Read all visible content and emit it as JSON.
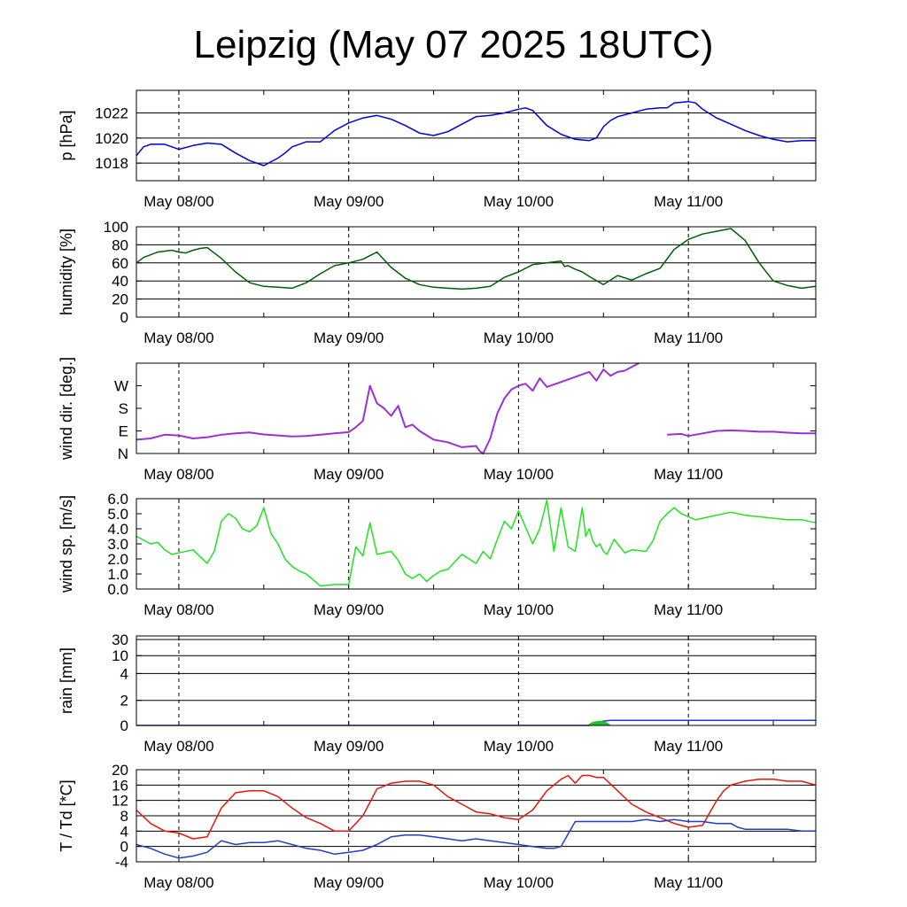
{
  "title": "Leipzig (May 07 2025 18UTC)",
  "colors": {
    "pressure": "#0000dd",
    "humidity": "#005f00",
    "wind_dir": "#9b30d9",
    "wind_speed": "#22e222",
    "rain_total": "#1e3fc8",
    "rain_rate": "#22c22c",
    "temperature": "#e8160c",
    "dewpoint": "#1e3fc8"
  },
  "chart_data": [
    {
      "type": "line",
      "ylabel": "p [hPa]",
      "x_tick_labels": [
        "May 08/00",
        "May 09/00",
        "May 10/00",
        "May 11/00"
      ],
      "x_ticks_hours": [
        6,
        30,
        54,
        78
      ],
      "x_range_hours": [
        0,
        96
      ],
      "ylim": [
        1016.6,
        1023.8
      ],
      "y_ticks": [
        1018,
        1020,
        1022
      ],
      "y_tick_labels": [
        "1018",
        "1020",
        "1022"
      ],
      "grid": true,
      "series": [
        {
          "key": "pressure",
          "x": [
            0,
            1,
            2,
            4,
            6,
            8,
            10,
            12,
            14,
            16,
            18,
            20,
            21,
            22,
            24,
            26,
            28,
            30,
            32,
            34,
            36,
            38,
            40,
            42,
            44,
            46,
            48,
            50,
            52,
            54,
            55,
            56,
            57,
            58,
            60,
            62,
            64,
            65,
            66,
            67,
            68,
            70,
            72,
            74,
            75,
            76,
            78,
            79,
            80,
            82,
            84,
            86,
            88,
            90,
            92,
            94,
            96
          ],
          "values": [
            1018.6,
            1019.3,
            1019.5,
            1019.5,
            1019.1,
            1019.4,
            1019.6,
            1019.5,
            1018.8,
            1018.2,
            1017.8,
            1018.4,
            1018.8,
            1019.3,
            1019.7,
            1019.7,
            1020.6,
            1021.2,
            1021.6,
            1021.8,
            1021.5,
            1021.0,
            1020.4,
            1020.2,
            1020.5,
            1021.1,
            1021.7,
            1021.8,
            1022.0,
            1022.3,
            1022.4,
            1022.2,
            1021.6,
            1021.0,
            1020.3,
            1019.9,
            1019.8,
            1020.0,
            1020.9,
            1021.4,
            1021.7,
            1022.0,
            1022.3,
            1022.4,
            1022.4,
            1022.8,
            1022.9,
            1022.8,
            1022.3,
            1021.6,
            1021.1,
            1020.6,
            1020.2,
            1019.9,
            1019.7,
            1019.8,
            1019.8
          ]
        }
      ]
    },
    {
      "type": "line",
      "ylabel": "humidity [%]",
      "x_tick_labels": [
        "May 08/00",
        "May 09/00",
        "May 10/00",
        "May 11/00"
      ],
      "x_ticks_hours": [
        6,
        30,
        54,
        78
      ],
      "x_range_hours": [
        0,
        96
      ],
      "ylim": [
        0,
        100
      ],
      "y_ticks": [
        0,
        20,
        40,
        60,
        80,
        100
      ],
      "y_tick_labels": [
        "0",
        "20",
        "40",
        "60",
        "80",
        "100"
      ],
      "grid": true,
      "series": [
        {
          "key": "humidity",
          "x": [
            0,
            1,
            3,
            5,
            6,
            7,
            8,
            9,
            10,
            12,
            14,
            16,
            18,
            20,
            22,
            24,
            26,
            28,
            30,
            32,
            33,
            34,
            36,
            38,
            40,
            42,
            44,
            46,
            48,
            50,
            52,
            54,
            56,
            58,
            60,
            60.5,
            61,
            62,
            63,
            64,
            66,
            68,
            70,
            72,
            74,
            76,
            78,
            80,
            82,
            84,
            86,
            88,
            90,
            92,
            94,
            96
          ],
          "values": [
            60,
            66,
            72,
            74,
            72,
            71,
            74,
            76,
            77,
            65,
            50,
            38,
            34,
            33,
            32,
            38,
            48,
            57,
            60,
            64,
            68,
            72,
            55,
            43,
            36,
            33,
            32,
            31,
            32,
            34,
            44,
            50,
            58,
            60,
            62,
            56,
            57,
            53,
            50,
            45,
            36,
            46,
            41,
            48,
            54,
            75,
            86,
            92,
            95,
            98,
            85,
            60,
            40,
            35,
            32,
            34
          ]
        }
      ]
    },
    {
      "type": "line",
      "ylabel": "wind dir. [deg.]",
      "x_tick_labels": [
        "May 08/00",
        "May 09/00",
        "May 10/00",
        "May 11/00"
      ],
      "x_ticks_hours": [
        6,
        30,
        54,
        78
      ],
      "x_range_hours": [
        0,
        96
      ],
      "ylim": [
        0,
        360
      ],
      "y_ticks": [
        0,
        90,
        180,
        270
      ],
      "y_tick_labels": [
        "N",
        "E",
        "S",
        "W"
      ],
      "grid": false,
      "series": [
        {
          "key": "wind_dir",
          "x": [
            0,
            2,
            4,
            6,
            8,
            10,
            12,
            14,
            16,
            18,
            20,
            22,
            24,
            26,
            28,
            30,
            31,
            32,
            33,
            34,
            35,
            36,
            37,
            38,
            39,
            40,
            42,
            44,
            46,
            48,
            48.5,
            49,
            50,
            51,
            52,
            53,
            54,
            55,
            56,
            57,
            58,
            59,
            60,
            62,
            64,
            65,
            66,
            67,
            68,
            69,
            70,
            71,
            null,
            75,
            77,
            78,
            80,
            82,
            84,
            86,
            88,
            90,
            92,
            94,
            96
          ],
          "values": [
            55,
            60,
            75,
            72,
            60,
            65,
            75,
            80,
            84,
            76,
            72,
            68,
            70,
            75,
            80,
            85,
            105,
            130,
            270,
            200,
            180,
            150,
            190,
            105,
            115,
            90,
            55,
            45,
            25,
            30,
            10,
            0,
            60,
            160,
            220,
            255,
            270,
            278,
            250,
            300,
            265,
            275,
            285,
            305,
            325,
            290,
            335,
            310,
            325,
            330,
            345,
            360,
            null,
            75,
            78,
            70,
            80,
            90,
            92,
            90,
            87,
            87,
            83,
            80,
            80
          ]
        }
      ]
    },
    {
      "type": "line",
      "ylabel": "wind sp. [m/s]",
      "x_tick_labels": [
        "May 08/00",
        "May 09/00",
        "May 10/00",
        "May 11/00"
      ],
      "x_ticks_hours": [
        6,
        30,
        54,
        78
      ],
      "x_range_hours": [
        0,
        96
      ],
      "ylim": [
        0,
        6
      ],
      "y_ticks": [
        0,
        1,
        2,
        3,
        4,
        5,
        6
      ],
      "y_tick_labels": [
        "0.0",
        "1.0",
        "2.0",
        "3.0",
        "4.0",
        "5.0",
        "6.0"
      ],
      "grid": false,
      "series": [
        {
          "key": "wind_speed",
          "x": [
            0,
            2,
            3,
            4,
            5,
            6,
            8,
            10,
            11,
            12,
            13,
            14,
            15,
            16,
            17,
            18,
            19,
            20,
            21,
            22,
            23,
            24,
            26,
            28,
            30,
            31,
            32,
            33,
            34,
            36,
            37,
            38,
            39,
            40,
            41,
            42,
            43,
            44,
            45,
            46,
            48,
            49,
            50,
            51,
            52,
            53,
            54,
            56,
            57,
            58,
            59,
            60,
            61,
            62,
            63,
            63.5,
            64,
            64.5,
            65,
            65.5,
            66,
            66.5,
            67,
            67.5,
            68,
            69,
            70,
            72,
            73,
            74,
            75,
            76,
            77,
            78,
            79,
            80,
            82,
            84,
            86,
            88,
            90,
            92,
            94,
            96
          ],
          "values": [
            3.5,
            3.0,
            3.1,
            2.6,
            2.3,
            2.4,
            2.6,
            1.7,
            2.5,
            4.5,
            5.0,
            4.7,
            4.0,
            3.8,
            4.2,
            5.4,
            3.7,
            3.0,
            2.0,
            1.5,
            1.2,
            1.0,
            0.2,
            0.3,
            0.3,
            2.8,
            2.2,
            4.4,
            2.3,
            2.5,
            1.9,
            1.0,
            0.7,
            1.0,
            0.5,
            0.9,
            1.2,
            1.3,
            1.8,
            2.3,
            1.7,
            2.5,
            2.0,
            3.3,
            4.5,
            4.0,
            5.2,
            3.0,
            4.0,
            5.9,
            2.5,
            5.4,
            2.8,
            2.5,
            5.4,
            3.5,
            4.0,
            3.2,
            2.8,
            3.0,
            2.5,
            2.3,
            2.8,
            3.3,
            3.0,
            2.4,
            2.6,
            2.5,
            3.2,
            4.5,
            5.0,
            5.4,
            5.0,
            4.8,
            4.6,
            4.7,
            4.9,
            5.1,
            4.9,
            4.8,
            4.7,
            4.6,
            4.6,
            4.4
          ]
        }
      ]
    },
    {
      "type": "area",
      "ylabel": "rain [mm]",
      "x_tick_labels": [
        "May 08/00",
        "May 09/00",
        "May 10/00",
        "May 11/00"
      ],
      "x_ticks_hours": [
        6,
        30,
        54,
        78
      ],
      "x_range_hours": [
        0,
        96
      ],
      "y_ticks": [
        0,
        2,
        4,
        10,
        30
      ],
      "y_tick_labels": [
        "0",
        "2",
        "4",
        "10",
        "30"
      ],
      "grid": true,
      "series": [
        {
          "key": "rain_total",
          "x": [
            0,
            64,
            65,
            66,
            67,
            96
          ],
          "values": [
            0,
            0,
            0.2,
            0.35,
            0.4,
            0.4
          ]
        },
        {
          "key": "rain_rate",
          "x": [
            64,
            64.5,
            65,
            65.5,
            66,
            66.5,
            67
          ],
          "values": [
            0.1,
            0.25,
            0.3,
            0.35,
            0.3,
            0.2,
            0.0
          ]
        }
      ]
    },
    {
      "type": "line",
      "ylabel": "T / Td [*C]",
      "x_tick_labels": [
        "May 08/00",
        "May 09/00",
        "May 10/00",
        "May 11/00"
      ],
      "x_ticks_hours": [
        6,
        30,
        54,
        78
      ],
      "x_range_hours": [
        0,
        96
      ],
      "ylim": [
        -4,
        20
      ],
      "y_ticks": [
        -4,
        0,
        4,
        8,
        12,
        16,
        20
      ],
      "y_tick_labels": [
        "-4",
        "0",
        "4",
        "8",
        "12",
        "16",
        "20"
      ],
      "grid": true,
      "series": [
        {
          "key": "temperature",
          "x": [
            0,
            2,
            4,
            6,
            8,
            10,
            12,
            14,
            16,
            18,
            20,
            22,
            24,
            26,
            28,
            30,
            32,
            34,
            36,
            38,
            40,
            42,
            44,
            46,
            48,
            50,
            52,
            54,
            56,
            58,
            60,
            61,
            62,
            63,
            64,
            65,
            66,
            68,
            70,
            72,
            74,
            76,
            78,
            80,
            82,
            83,
            84,
            86,
            88,
            90,
            92,
            94,
            96
          ],
          "values": [
            9.5,
            6,
            4,
            3.5,
            2,
            2.5,
            10,
            14,
            14.5,
            14.5,
            13,
            10,
            7.5,
            6,
            4,
            4,
            8,
            15,
            16.5,
            17,
            17,
            16,
            13,
            11,
            9,
            8.5,
            7.5,
            7,
            9.5,
            14.5,
            17.5,
            18.5,
            16.5,
            18.5,
            18.5,
            18,
            18,
            14.5,
            11,
            9,
            7.5,
            6,
            5,
            5.5,
            12,
            14.5,
            16,
            17,
            17.5,
            17.5,
            17,
            17,
            16
          ]
        },
        {
          "key": "dewpoint",
          "x": [
            0,
            2,
            4,
            6,
            8,
            10,
            12,
            14,
            16,
            18,
            20,
            22,
            24,
            26,
            28,
            30,
            32,
            34,
            36,
            38,
            40,
            42,
            44,
            46,
            48,
            50,
            52,
            54,
            56,
            58,
            59,
            60,
            62,
            64,
            66,
            68,
            70,
            72,
            74,
            76,
            78,
            80,
            82,
            84,
            85,
            86,
            88,
            90,
            92,
            94,
            96
          ],
          "values": [
            0.5,
            -0.5,
            -2,
            -3,
            -2.5,
            -1.5,
            1.5,
            0.5,
            1,
            1,
            1.5,
            0.5,
            -0.5,
            -1,
            -2,
            -1.5,
            -1,
            0.5,
            2.5,
            3,
            3,
            2.5,
            2,
            1.5,
            2,
            1.5,
            1,
            0.5,
            0,
            -0.5,
            -0.5,
            0,
            6.5,
            6.5,
            6.5,
            6.5,
            6.5,
            7,
            6.5,
            7,
            6.5,
            6.5,
            6,
            6,
            5,
            4.5,
            4.5,
            4.5,
            4.5,
            4,
            4
          ]
        }
      ]
    }
  ]
}
